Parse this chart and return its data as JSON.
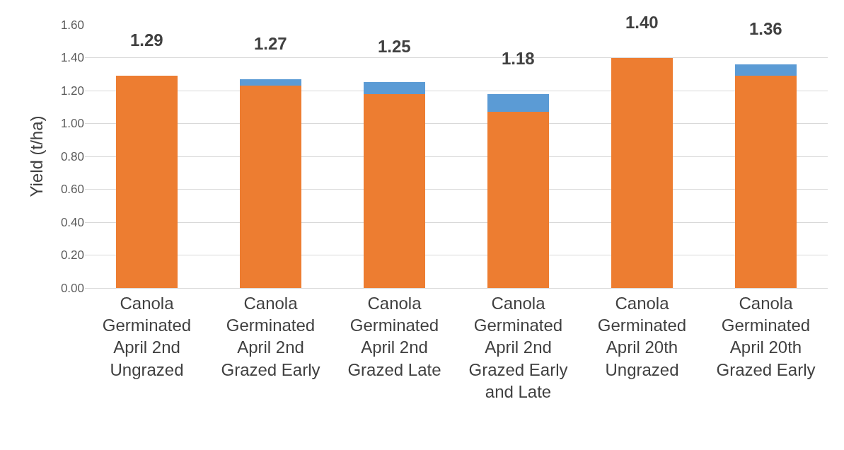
{
  "chart_data": {
    "type": "bar",
    "stacked": true,
    "ylabel": "Yield (t/ha)",
    "categories": [
      "Canola Germinated April 2nd Ungrazed",
      "Canola Germinated April 2nd Grazed Early",
      "Canola Germinated April 2nd Grazed Late",
      "Canola Germinated April 2nd Grazed Early and Late",
      "Canola Germinated April 20th Ungrazed",
      "Canola Germinated April 20th Grazed Early"
    ],
    "series": [
      {
        "color": "#ed7d31",
        "values": [
          1.29,
          1.23,
          1.18,
          1.07,
          1.4,
          1.29
        ]
      },
      {
        "color": "#5b9bd5",
        "values": [
          0,
          0.04,
          0.07,
          0.11,
          0,
          0.07
        ]
      }
    ],
    "totals": [
      "1.29",
      "1.27",
      "1.25",
      "1.18",
      "1.40",
      "1.36"
    ],
    "ylim": [
      0,
      1.6
    ],
    "yticks": [
      {
        "value": 0,
        "label": "0.00"
      },
      {
        "value": 0.2,
        "label": "0.20"
      },
      {
        "value": 0.4,
        "label": "0.40"
      },
      {
        "value": 0.6,
        "label": "0.60"
      },
      {
        "value": 0.8,
        "label": "0.80"
      },
      {
        "value": 1.0,
        "label": "1.00"
      },
      {
        "value": 1.2,
        "label": "1.20"
      },
      {
        "value": 1.4,
        "label": "1.40"
      },
      {
        "value": 1.6,
        "label": "1.60"
      }
    ],
    "grid": "y",
    "legend": false
  }
}
